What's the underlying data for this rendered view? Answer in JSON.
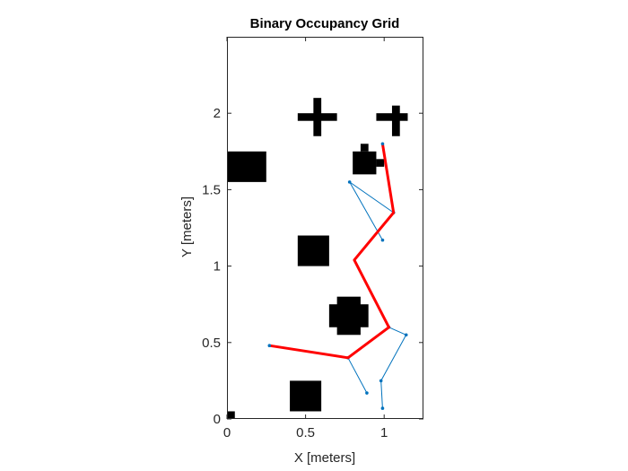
{
  "figure": {
    "background": "#ffffff"
  },
  "chart_data": {
    "type": "occupancy-grid-with-path",
    "title": "Binary Occupancy Grid",
    "xlabel": "X [meters]",
    "ylabel": "Y [meters]",
    "xlim": [
      0,
      1.25
    ],
    "ylim": [
      0,
      2.5
    ],
    "grid": false,
    "xticks": [
      0,
      0.5,
      1
    ],
    "xtick_labels": [
      "0",
      "0.5",
      "1"
    ],
    "yticks": [
      0,
      0.5,
      1,
      1.5,
      2
    ],
    "ytick_labels": [
      "0",
      "0.5",
      "1",
      "1.5",
      "2"
    ],
    "occupied_color": "#000000",
    "free_color": "#ffffff",
    "obstacles": [
      {
        "name": "square-topleft",
        "x": [
          0.0,
          0.25
        ],
        "y": [
          1.55,
          1.75
        ]
      },
      {
        "name": "square-middle",
        "x": [
          0.45,
          0.65
        ],
        "y": [
          1.0,
          1.2
        ]
      },
      {
        "name": "square-bottom",
        "x": [
          0.4,
          0.6
        ],
        "y": [
          0.05,
          0.25
        ]
      },
      {
        "name": "corner-cell",
        "x": [
          0.0,
          0.05
        ],
        "y": [
          0.0,
          0.05
        ]
      },
      {
        "name": "plus-left-h",
        "x": [
          0.45,
          0.7
        ],
        "y": [
          1.95,
          2.0
        ]
      },
      {
        "name": "plus-left-v",
        "x": [
          0.55,
          0.6
        ],
        "y": [
          1.85,
          2.1
        ]
      },
      {
        "name": "plus-right-h",
        "x": [
          0.95,
          1.15
        ],
        "y": [
          1.95,
          2.0
        ]
      },
      {
        "name": "plus-right-v",
        "x": [
          1.05,
          1.1
        ],
        "y": [
          1.85,
          2.05
        ]
      },
      {
        "name": "blob-top-a",
        "x": [
          0.8,
          0.95
        ],
        "y": [
          1.6,
          1.75
        ]
      },
      {
        "name": "blob-top-b",
        "x": [
          0.85,
          0.9
        ],
        "y": [
          1.75,
          1.8
        ]
      },
      {
        "name": "blob-top-c",
        "x": [
          0.95,
          1.0
        ],
        "y": [
          1.65,
          1.7
        ]
      },
      {
        "name": "blob-mid-a",
        "x": [
          0.7,
          0.85
        ],
        "y": [
          0.55,
          0.8
        ]
      },
      {
        "name": "blob-mid-b",
        "x": [
          0.65,
          0.9
        ],
        "y": [
          0.6,
          0.75
        ]
      }
    ],
    "series": [
      {
        "color": "#ff0000",
        "x": [
          0.27,
          0.77,
          1.03,
          0.81,
          1.06,
          0.99
        ],
        "y": [
          0.48,
          0.4,
          0.6,
          1.04,
          1.35,
          1.8
        ]
      },
      {
        "color": "#0072bd",
        "x": [
          0.77,
          0.89
        ],
        "y": [
          0.4,
          0.17
        ]
      },
      {
        "color": "#0072bd",
        "x": [
          1.03,
          1.14,
          0.98,
          0.99
        ],
        "y": [
          0.6,
          0.55,
          0.25,
          0.07
        ]
      },
      {
        "color": "#0072bd",
        "x": [
          1.06,
          0.78,
          0.99
        ],
        "y": [
          1.35,
          1.55,
          1.17
        ]
      }
    ]
  }
}
